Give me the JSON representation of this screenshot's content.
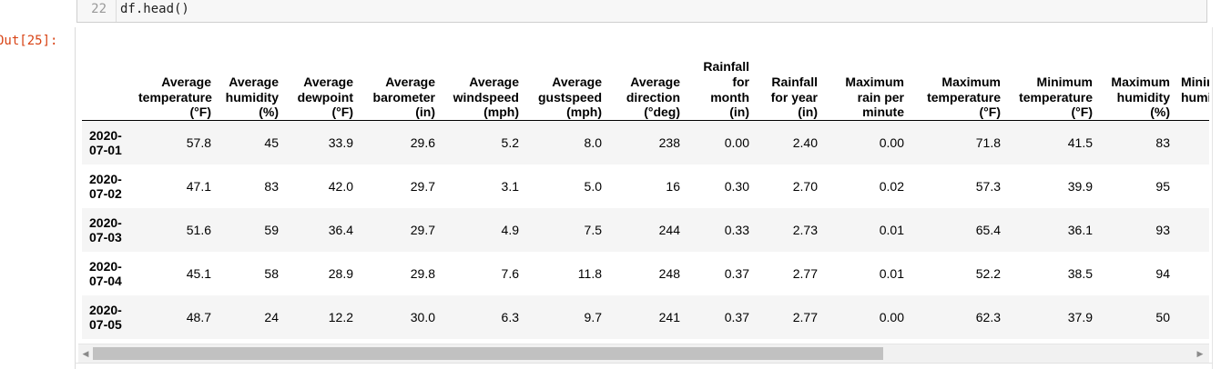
{
  "input_cell": {
    "line_number": "22",
    "code": "df.head()"
  },
  "output_prompt": "Out[25]:",
  "dataframe": {
    "columns": [
      "Average temperature (°F)",
      "Average humidity (%)",
      "Average dewpoint (°F)",
      "Average barometer (in)",
      "Average windspeed (mph)",
      "Average gustspeed (mph)",
      "Average direction (°deg)",
      "Rainfall for month (in)",
      "Rainfall for year (in)",
      "Maximum rain per minute",
      "Maximum temperature (°F)",
      "Minimum temperature (°F)",
      "Maximum humidity (%)",
      "Minimum humidity (%)"
    ],
    "rows": [
      {
        "index": "2020-07-01",
        "values": [
          "57.8",
          "45",
          "33.9",
          "29.6",
          "5.2",
          "8.0",
          "238",
          "0.00",
          "2.40",
          "0.00",
          "71.8",
          "41.5",
          "83",
          ""
        ]
      },
      {
        "index": "2020-07-02",
        "values": [
          "47.1",
          "83",
          "42.0",
          "29.7",
          "3.1",
          "5.0",
          "16",
          "0.30",
          "2.70",
          "0.02",
          "57.3",
          "39.9",
          "95",
          ""
        ]
      },
      {
        "index": "2020-07-03",
        "values": [
          "51.6",
          "59",
          "36.4",
          "29.7",
          "4.9",
          "7.5",
          "244",
          "0.33",
          "2.73",
          "0.01",
          "65.4",
          "36.1",
          "93",
          ""
        ]
      },
      {
        "index": "2020-07-04",
        "values": [
          "45.1",
          "58",
          "28.9",
          "29.8",
          "7.6",
          "11.8",
          "248",
          "0.37",
          "2.77",
          "0.01",
          "52.2",
          "38.5",
          "94",
          ""
        ]
      },
      {
        "index": "2020-07-05",
        "values": [
          "48.7",
          "24",
          "12.2",
          "30.0",
          "6.3",
          "9.7",
          "241",
          "0.37",
          "2.77",
          "0.00",
          "62.3",
          "37.9",
          "50",
          ""
        ]
      }
    ]
  },
  "scrollbar": {
    "left_arrow": "◀",
    "right_arrow": "▶",
    "position_fraction": 0.0,
    "visible_fraction": 0.72
  }
}
